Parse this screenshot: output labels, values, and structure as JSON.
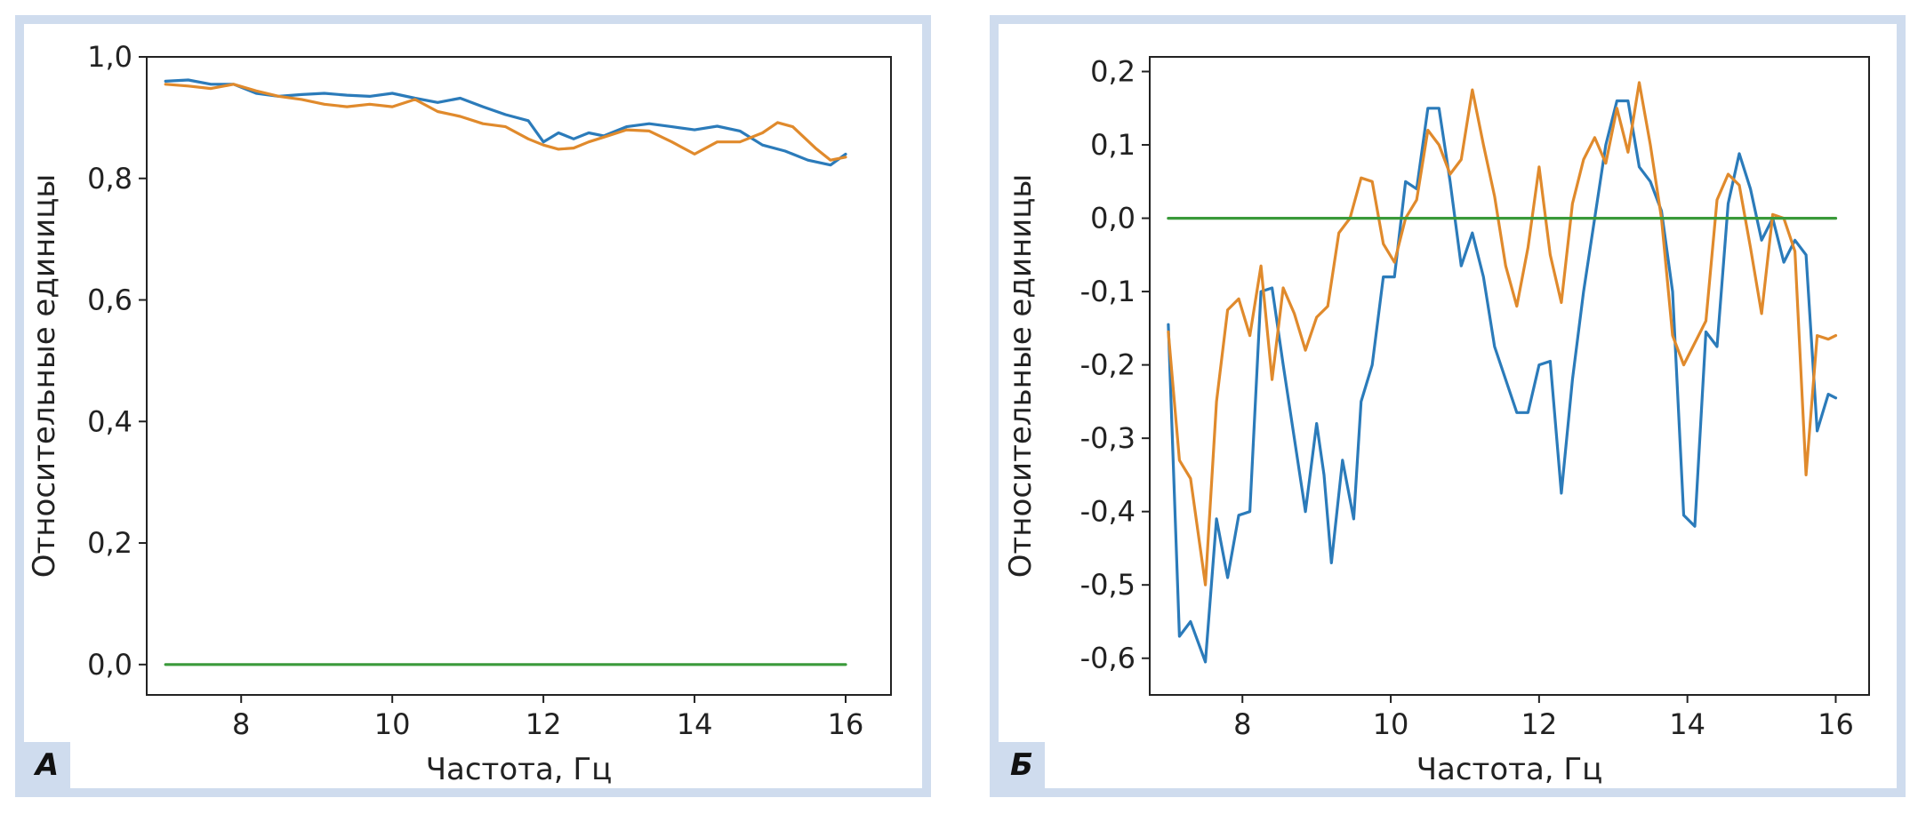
{
  "chart_data": [
    {
      "type": "line",
      "panel_label": "А",
      "xlabel": "Частота, Гц",
      "ylabel": "Относительные единицы",
      "xlim": [
        6.75,
        16.6
      ],
      "ylim": [
        -0.05,
        1.0
      ],
      "x_ticks": [
        8,
        10,
        12,
        14,
        16
      ],
      "x_tick_labels": [
        "8",
        "10",
        "12",
        "14",
        "16"
      ],
      "y_ticks": [
        0.0,
        0.2,
        0.4,
        0.6,
        0.8,
        1.0
      ],
      "y_tick_labels": [
        "0,0",
        "0,2",
        "0,4",
        "0,6",
        "0,8",
        "1,0"
      ],
      "grid": false,
      "series": [
        {
          "color": "#2b7bba",
          "x": [
            7.0,
            7.3,
            7.6,
            7.9,
            8.2,
            8.5,
            8.8,
            9.1,
            9.4,
            9.7,
            10.0,
            10.3,
            10.6,
            10.9,
            11.2,
            11.5,
            11.8,
            12.0,
            12.2,
            12.4,
            12.6,
            12.8,
            13.1,
            13.4,
            13.7,
            14.0,
            14.3,
            14.6,
            14.9,
            15.2,
            15.5,
            15.8,
            16.0
          ],
          "y": [
            0.96,
            0.962,
            0.955,
            0.955,
            0.94,
            0.935,
            0.938,
            0.94,
            0.937,
            0.935,
            0.94,
            0.932,
            0.925,
            0.932,
            0.918,
            0.905,
            0.895,
            0.86,
            0.875,
            0.865,
            0.875,
            0.87,
            0.885,
            0.89,
            0.885,
            0.88,
            0.886,
            0.878,
            0.855,
            0.845,
            0.83,
            0.822,
            0.84
          ]
        },
        {
          "color": "#e08a2c",
          "x": [
            7.0,
            7.3,
            7.6,
            7.9,
            8.2,
            8.5,
            8.8,
            9.1,
            9.4,
            9.7,
            10.0,
            10.3,
            10.6,
            10.9,
            11.2,
            11.5,
            11.8,
            12.0,
            12.2,
            12.4,
            12.6,
            12.8,
            13.1,
            13.4,
            13.7,
            14.0,
            14.3,
            14.6,
            14.9,
            15.1,
            15.3,
            15.6,
            15.8,
            16.0
          ],
          "y": [
            0.955,
            0.952,
            0.948,
            0.955,
            0.944,
            0.935,
            0.93,
            0.922,
            0.918,
            0.922,
            0.918,
            0.93,
            0.91,
            0.902,
            0.89,
            0.885,
            0.865,
            0.855,
            0.848,
            0.85,
            0.86,
            0.868,
            0.88,
            0.878,
            0.86,
            0.84,
            0.86,
            0.86,
            0.875,
            0.892,
            0.885,
            0.85,
            0.83,
            0.835
          ]
        },
        {
          "color": "#3a9a3a",
          "x": [
            7.0,
            16.0
          ],
          "y": [
            0.0,
            0.0
          ]
        }
      ]
    },
    {
      "type": "line",
      "panel_label": "Б",
      "xlabel": "Частота, Гц",
      "ylabel": "Относительные единицы",
      "xlim": [
        6.75,
        16.45
      ],
      "ylim": [
        -0.65,
        0.22
      ],
      "x_ticks": [
        8,
        10,
        12,
        14,
        16
      ],
      "x_tick_labels": [
        "8",
        "10",
        "12",
        "14",
        "16"
      ],
      "y_ticks": [
        -0.6,
        -0.5,
        -0.4,
        -0.3,
        -0.2,
        -0.1,
        0.0,
        0.1,
        0.2
      ],
      "y_tick_labels": [
        "-0,6",
        "-0,5",
        "-0,4",
        "-0,3",
        "-0,2",
        "-0,1",
        "0,0",
        "0,1",
        "0,2"
      ],
      "grid": false,
      "series": [
        {
          "color": "#2b7bba",
          "x": [
            7.0,
            7.15,
            7.3,
            7.5,
            7.65,
            7.8,
            7.95,
            8.1,
            8.25,
            8.4,
            8.55,
            8.7,
            8.85,
            9.0,
            9.1,
            9.2,
            9.35,
            9.5,
            9.6,
            9.75,
            9.9,
            10.05,
            10.2,
            10.35,
            10.5,
            10.65,
            10.8,
            10.95,
            11.1,
            11.25,
            11.4,
            11.55,
            11.7,
            11.85,
            12.0,
            12.15,
            12.3,
            12.45,
            12.6,
            12.75,
            12.9,
            13.05,
            13.2,
            13.35,
            13.5,
            13.65,
            13.8,
            13.95,
            14.1,
            14.25,
            14.4,
            14.55,
            14.7,
            14.85,
            15.0,
            15.15,
            15.3,
            15.45,
            15.6,
            15.75,
            15.9,
            16.0
          ],
          "y": [
            -0.145,
            -0.57,
            -0.55,
            -0.605,
            -0.41,
            -0.49,
            -0.405,
            -0.4,
            -0.1,
            -0.095,
            -0.2,
            -0.3,
            -0.4,
            -0.28,
            -0.35,
            -0.47,
            -0.33,
            -0.41,
            -0.25,
            -0.2,
            -0.08,
            -0.08,
            0.05,
            0.04,
            0.15,
            0.15,
            0.05,
            -0.065,
            -0.02,
            -0.08,
            -0.175,
            -0.22,
            -0.265,
            -0.265,
            -0.2,
            -0.195,
            -0.375,
            -0.22,
            -0.1,
            0.0,
            0.1,
            0.16,
            0.16,
            0.07,
            0.05,
            0.01,
            -0.1,
            -0.405,
            -0.42,
            -0.155,
            -0.175,
            0.02,
            0.088,
            0.04,
            -0.03,
            0.0,
            -0.06,
            -0.03,
            -0.05,
            -0.29,
            -0.24,
            -0.245
          ]
        },
        {
          "color": "#e08a2c",
          "x": [
            7.0,
            7.15,
            7.3,
            7.5,
            7.65,
            7.8,
            7.95,
            8.1,
            8.25,
            8.4,
            8.55,
            8.7,
            8.85,
            9.0,
            9.15,
            9.3,
            9.45,
            9.6,
            9.75,
            9.9,
            10.05,
            10.2,
            10.35,
            10.5,
            10.65,
            10.8,
            10.95,
            11.1,
            11.25,
            11.4,
            11.55,
            11.7,
            11.85,
            12.0,
            12.15,
            12.3,
            12.45,
            12.6,
            12.75,
            12.9,
            13.05,
            13.2,
            13.35,
            13.5,
            13.65,
            13.8,
            13.95,
            14.1,
            14.25,
            14.4,
            14.55,
            14.7,
            14.85,
            15.0,
            15.15,
            15.3,
            15.45,
            15.6,
            15.75,
            15.9,
            16.0
          ],
          "y": [
            -0.155,
            -0.33,
            -0.355,
            -0.5,
            -0.25,
            -0.125,
            -0.11,
            -0.16,
            -0.065,
            -0.22,
            -0.095,
            -0.13,
            -0.18,
            -0.135,
            -0.12,
            -0.02,
            0.0,
            0.055,
            0.05,
            -0.035,
            -0.06,
            0.0,
            0.025,
            0.12,
            0.1,
            0.06,
            0.08,
            0.175,
            0.1,
            0.03,
            -0.065,
            -0.12,
            -0.04,
            0.07,
            -0.05,
            -0.115,
            0.02,
            0.08,
            0.11,
            0.075,
            0.15,
            0.09,
            0.185,
            0.1,
            0.0,
            -0.16,
            -0.2,
            -0.17,
            -0.14,
            0.025,
            0.06,
            0.045,
            -0.04,
            -0.13,
            0.005,
            0.0,
            -0.045,
            -0.35,
            -0.16,
            -0.165,
            -0.16
          ]
        },
        {
          "color": "#3a9a3a",
          "x": [
            7.0,
            16.0
          ],
          "y": [
            0.0,
            0.0
          ]
        }
      ]
    }
  ]
}
